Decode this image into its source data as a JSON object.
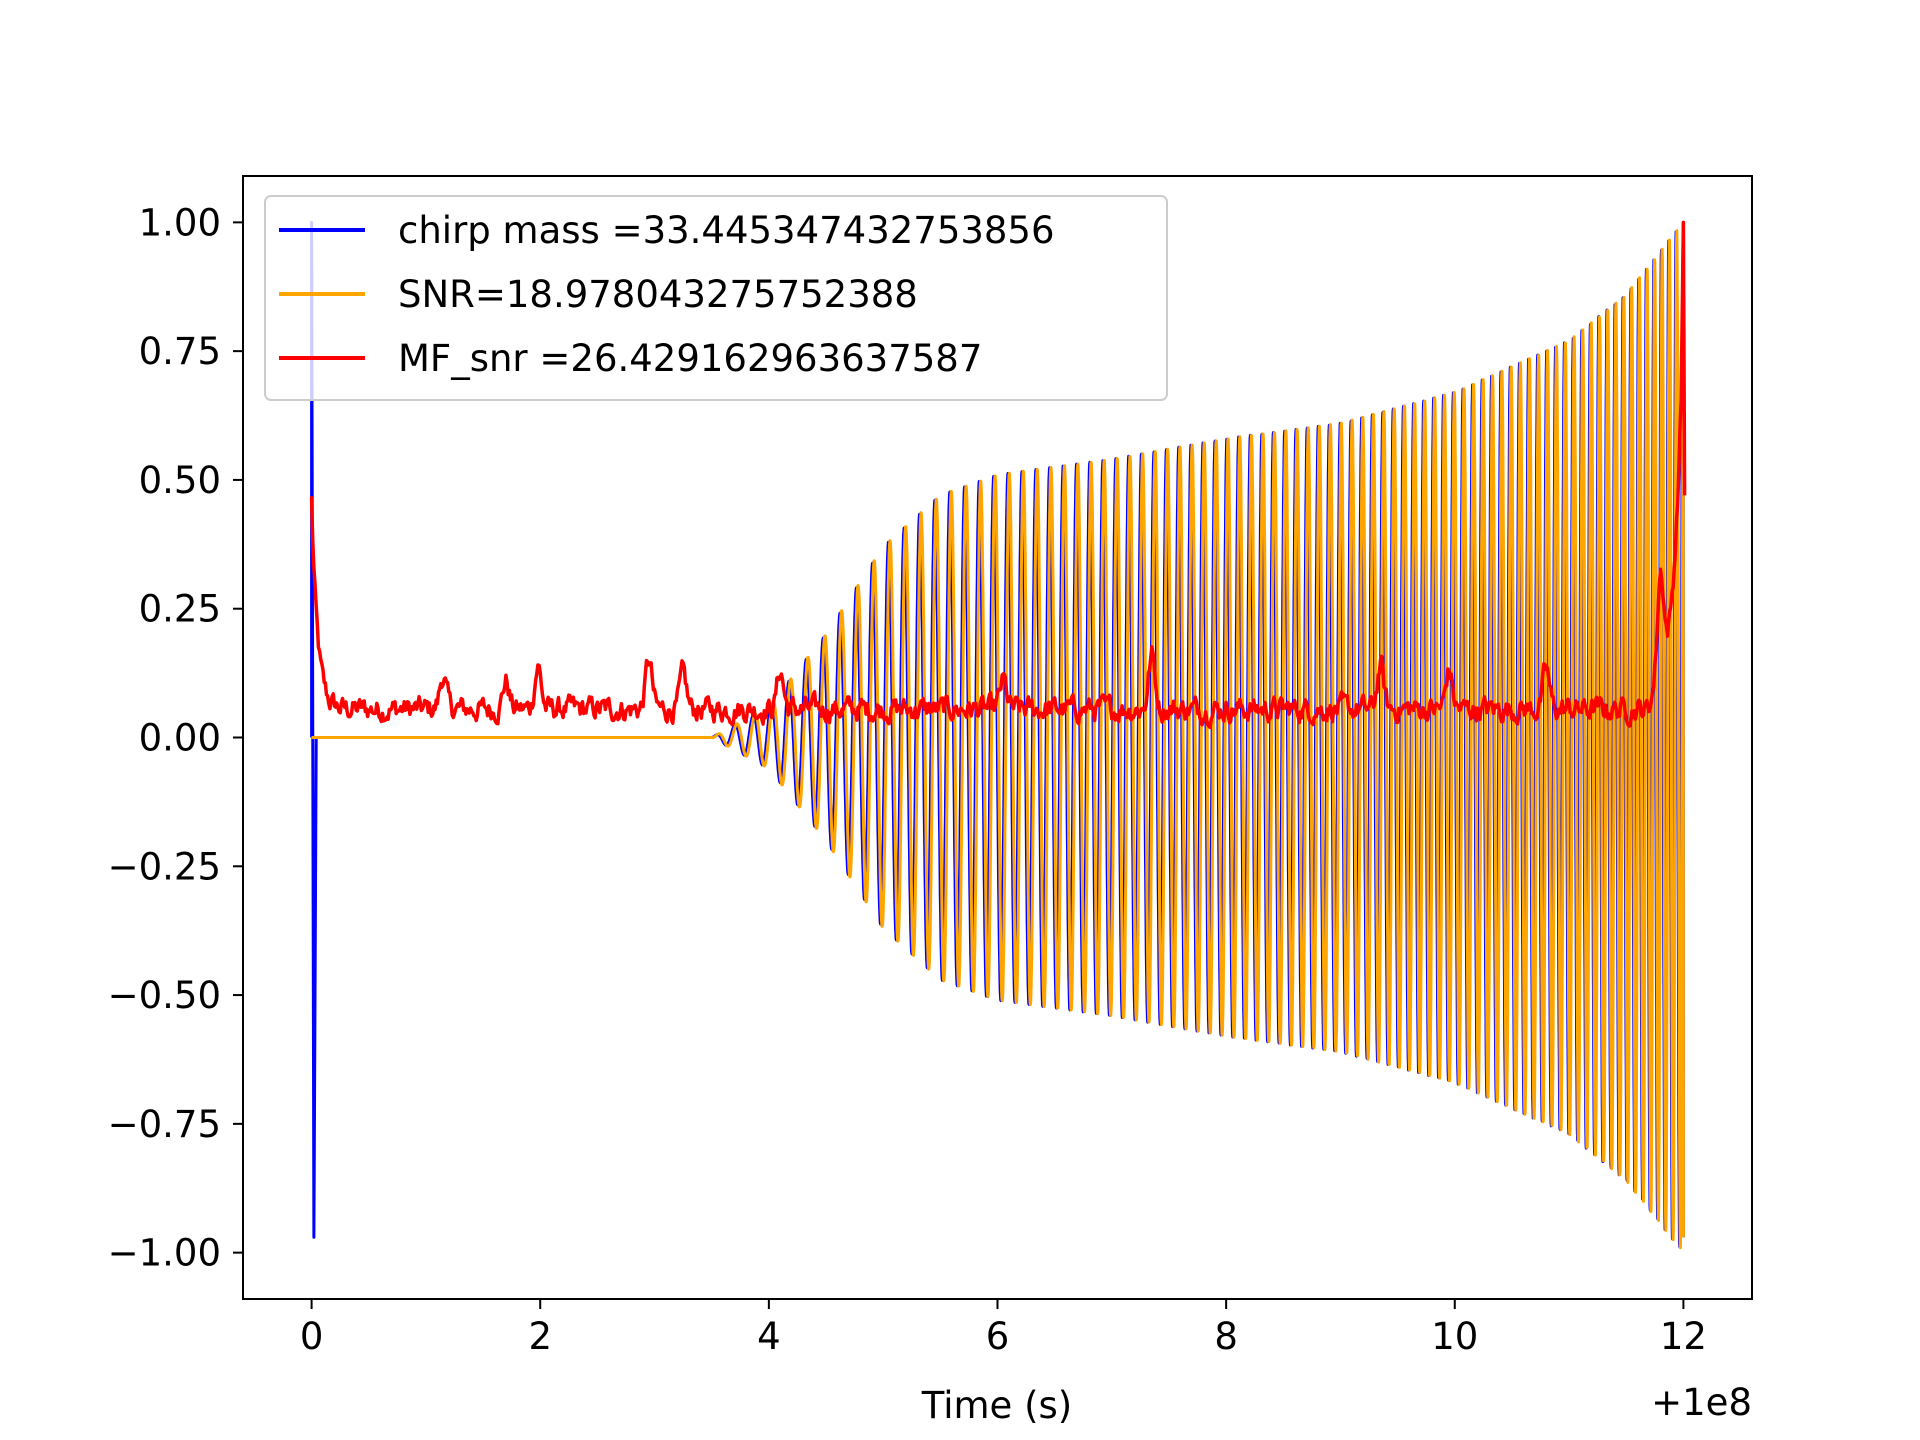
{
  "chart_data": {
    "type": "line",
    "title": "",
    "xlabel": "Time (s)",
    "ylabel": "",
    "x_offset_label": "+1e8",
    "xlim": [
      -0.6,
      12.6
    ],
    "ylim": [
      -1.09,
      1.09
    ],
    "x_ticks": [
      0,
      2,
      4,
      6,
      8,
      10,
      12
    ],
    "x_tick_labels": [
      "0",
      "2",
      "4",
      "6",
      "8",
      "10",
      "12"
    ],
    "y_ticks": [
      1.0,
      0.75,
      0.5,
      0.25,
      0.0,
      -0.25,
      -0.5,
      -0.75,
      -1.0
    ],
    "y_tick_labels": [
      "1.00",
      "0.75",
      "0.50",
      "0.25",
      "0.00",
      "−0.25",
      "−0.50",
      "−0.75",
      "−1.00"
    ],
    "grid": false,
    "legend_position": "top-left",
    "series": [
      {
        "name": "chirp mass =33.445347432753856",
        "color": "#0000ff",
        "kind": "chirp",
        "onset": 3.5,
        "end": 12.0,
        "spike": {
          "x": 0.0,
          "max": 1.0,
          "min": -0.97
        },
        "envelope": [
          [
            3.5,
            0.0
          ],
          [
            4.0,
            0.06
          ],
          [
            4.5,
            0.2
          ],
          [
            5.0,
            0.37
          ],
          [
            5.5,
            0.47
          ],
          [
            6.0,
            0.51
          ],
          [
            7.0,
            0.54
          ],
          [
            8.0,
            0.58
          ],
          [
            9.0,
            0.61
          ],
          [
            10.0,
            0.67
          ],
          [
            11.0,
            0.77
          ],
          [
            11.5,
            0.86
          ],
          [
            12.0,
            1.0
          ]
        ],
        "frequency_hz": [
          [
            3.5,
            6.0
          ],
          [
            6.0,
            8.0
          ],
          [
            9.0,
            10.5
          ],
          [
            11.0,
            13.0
          ],
          [
            12.0,
            16.0
          ]
        ]
      },
      {
        "name": "SNR=18.978043275752388",
        "color": "#ffa500",
        "kind": "chirp",
        "onset": 3.5,
        "end": 12.0,
        "phase_lag": 0.015,
        "envelope": [
          [
            3.5,
            0.0
          ],
          [
            4.0,
            0.06
          ],
          [
            4.5,
            0.2
          ],
          [
            5.0,
            0.37
          ],
          [
            5.5,
            0.47
          ],
          [
            6.0,
            0.51
          ],
          [
            7.0,
            0.54
          ],
          [
            8.0,
            0.58
          ],
          [
            9.0,
            0.61
          ],
          [
            10.0,
            0.67
          ],
          [
            11.0,
            0.77
          ],
          [
            11.5,
            0.86
          ],
          [
            12.0,
            1.0
          ]
        ]
      },
      {
        "name": "MF_snr =26.429162963637587",
        "color": "#ff0000",
        "kind": "noisy",
        "start_value": 0.46,
        "baseline": 0.055,
        "peaks": [
          [
            1.15,
            0.12
          ],
          [
            1.7,
            0.11
          ],
          [
            1.98,
            0.14
          ],
          [
            2.95,
            0.15
          ],
          [
            3.25,
            0.12
          ],
          [
            4.1,
            0.13
          ],
          [
            6.05,
            0.11
          ],
          [
            7.35,
            0.16
          ],
          [
            9.35,
            0.14
          ],
          [
            9.95,
            0.13
          ],
          [
            10.8,
            0.13
          ],
          [
            11.8,
            0.26
          ],
          [
            12.0,
            1.0
          ]
        ],
        "end_value": 0.47
      }
    ]
  }
}
